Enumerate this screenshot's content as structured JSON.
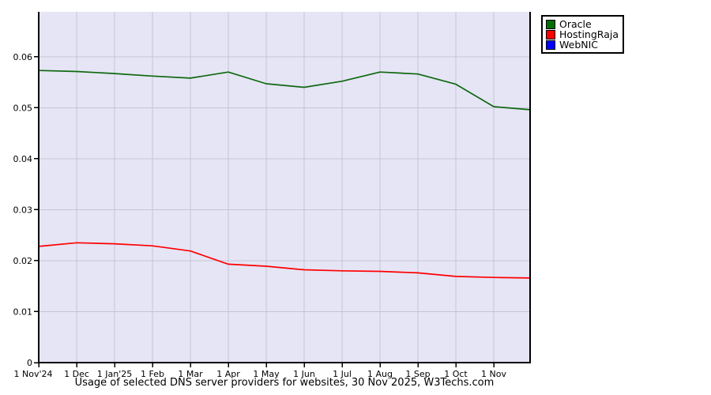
{
  "legend": {
    "items": [
      {
        "label": "Oracle",
        "color": "#006e00"
      },
      {
        "label": "HostingRaja",
        "color": "#ff0000"
      },
      {
        "label": "WebNIC",
        "color": "#0000ff"
      }
    ]
  },
  "chart_data": {
    "type": "line",
    "title": "Usage of selected DNS server providers for websites, 30 Nov 2025, W3Techs.com",
    "x_tick_labels": [
      "1 Nov'24",
      "1 Dec",
      "1 Jan'25",
      "1 Feb",
      "1 Mar",
      "1 Apr",
      "1 May",
      "1 Jun",
      "1 Jul",
      "1 Aug",
      "1 Sep",
      "1 Oct",
      "1 Nov"
    ],
    "x_index": [
      0,
      1,
      2,
      3,
      4,
      5,
      6,
      7,
      8,
      9,
      10,
      11,
      12,
      12.96
    ],
    "y_ticks": [
      0,
      0.01,
      0.02,
      0.03,
      0.04,
      0.05,
      0.06
    ],
    "y_tick_labels": [
      "0",
      "0.01",
      "0.02",
      "0.03",
      "0.04",
      "0.05",
      "0.06"
    ],
    "ylim": [
      0,
      0.0688
    ],
    "grid": true,
    "legend_position": "top-right-outside",
    "plot_bg": "#e5e5f6",
    "grid_color": "#c5c5d1",
    "axis_color": "#000000",
    "series": [
      {
        "name": "Oracle",
        "color": "#0e680e",
        "values": [
          0.0573,
          0.0571,
          0.0567,
          0.0562,
          0.0558,
          0.057,
          0.0547,
          0.054,
          0.0552,
          0.057,
          0.0566,
          0.0546,
          0.0502,
          0.0496
        ]
      },
      {
        "name": "HostingRaja",
        "color": "#ff0000",
        "values": [
          0.0228,
          0.0235,
          0.0233,
          0.0229,
          0.0219,
          0.0193,
          0.0189,
          0.0182,
          0.018,
          0.0179,
          0.0176,
          0.0169,
          0.0167,
          0.0166
        ]
      },
      {
        "name": "WebNIC",
        "color": "#0000ff",
        "values": [
          0,
          0,
          0,
          0,
          0,
          0,
          0,
          0,
          0,
          0,
          0,
          0,
          0,
          0
        ]
      }
    ]
  }
}
